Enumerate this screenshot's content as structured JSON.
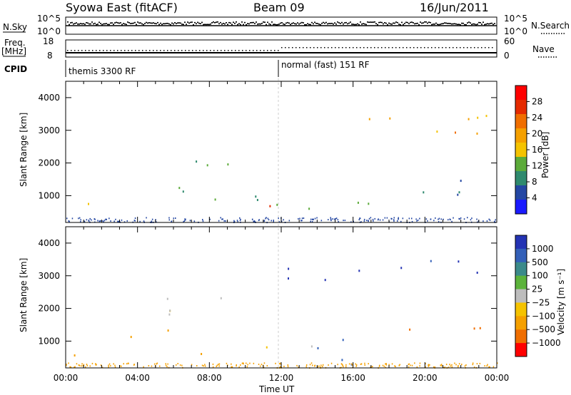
{
  "header": {
    "station": "Syowa East (fitACF)",
    "beam": "Beam 09",
    "date": "16/Jun/2011"
  },
  "strips": {
    "noise_left_label": "N.Sky",
    "noise_right_label": "N.Search",
    "noise_left_ticks": [
      "10^5",
      "10^0"
    ],
    "noise_right_ticks": [
      "10^5",
      "10^0"
    ],
    "freq_label_line1": "Freq.",
    "freq_label_line2": "[MHz]",
    "freq_ticks": [
      "18",
      "8"
    ],
    "nave_label": "Nave",
    "nave_ticks": [
      "60",
      "0"
    ],
    "cpid_label": "CPID",
    "cpid_modes": [
      "themis 3300 RF",
      "normal (fast) 151 RF"
    ]
  },
  "colors": {
    "power_scale": [
      "#1a1aff",
      "#2447a3",
      "#2f8a6e",
      "#5cab3a",
      "#f5c300",
      "#f5a000",
      "#f06e00",
      "#e52b00",
      "#ff0000"
    ],
    "velocity_scale": [
      "#2433b3",
      "#3360b8",
      "#3b8a8a",
      "#5cb33b",
      "#bdbdbd",
      "#f5c300",
      "#f5a000",
      "#f06e00",
      "#ff0000"
    ]
  },
  "chart_data": [
    {
      "type": "heatmap",
      "name": "power-panel",
      "xlabel": "",
      "ylabel": "Slant Range [km]",
      "x_range_hours": [
        0,
        24
      ],
      "ylim": [
        180,
        4500
      ],
      "y_ticks": [
        1000,
        2000,
        3000,
        4000
      ],
      "x_ticks": [
        "00:00",
        "04:00",
        "08:00",
        "12:00",
        "16:00",
        "20:00",
        "00:00"
      ],
      "colorbar_label": "Power [dB]",
      "colorbar_range": [
        0,
        32
      ],
      "colorbar_ticks": [
        "4",
        "8",
        "12",
        "16",
        "20",
        "24",
        "28"
      ],
      "grid": false,
      "regions": [
        {
          "t0": 5.5,
          "t1": 9.5,
          "r0": 1800,
          "r1": 2500,
          "value": 8
        },
        {
          "t0": 3.0,
          "t1": 7.0,
          "r0": 1100,
          "r1": 1600,
          "value": 8
        },
        {
          "t0": 6.5,
          "t1": 11.0,
          "r0": 900,
          "r1": 1500,
          "value": 10
        },
        {
          "t0": 8.5,
          "t1": 11.5,
          "r0": 500,
          "r1": 800,
          "value": 26
        },
        {
          "t0": 11.5,
          "t1": 13.5,
          "r0": 500,
          "r1": 900,
          "value": 14
        },
        {
          "t0": 13.0,
          "t1": 17.0,
          "r0": 400,
          "r1": 1100,
          "value": 10
        },
        {
          "t0": 16.5,
          "t1": 17.4,
          "r0": 250,
          "r1": 500,
          "value": 25
        },
        {
          "t0": 0.3,
          "t1": 1.5,
          "r0": 250,
          "r1": 1000,
          "value": 12
        },
        {
          "t0": 18.5,
          "t1": 24.0,
          "r0": 1000,
          "r1": 1600,
          "value": 6
        },
        {
          "t0": 12.0,
          "t1": 24.0,
          "r0": 2900,
          "r1": 3500,
          "value": 17
        }
      ]
    },
    {
      "type": "heatmap",
      "name": "velocity-panel",
      "xlabel": "Time UT",
      "ylabel": "Slant Range [km]",
      "x_range_hours": [
        0,
        24
      ],
      "ylim": [
        180,
        4500
      ],
      "y_ticks": [
        1000,
        2000,
        3000,
        4000
      ],
      "x_ticks": [
        "00:00",
        "04:00",
        "08:00",
        "12:00",
        "16:00",
        "20:00",
        "00:00"
      ],
      "colorbar_label": "Velocity [m s⁻¹]",
      "colorbar_ticks": [
        "1000",
        "500",
        "100",
        "25",
        "−25",
        "−100",
        "−500",
        "−1000"
      ],
      "grid": false,
      "regions": [
        {
          "t0": 5.0,
          "t1": 10.0,
          "r0": 1500,
          "r1": 2400,
          "value": 4
        },
        {
          "t0": 2.5,
          "t1": 6.5,
          "r0": 1100,
          "r1": 1500,
          "value": 6
        },
        {
          "t0": 7.5,
          "t1": 12.0,
          "r0": 500,
          "r1": 900,
          "value": 5
        },
        {
          "t0": 12.0,
          "t1": 14.5,
          "r0": 500,
          "r1": 1000,
          "value": 3
        },
        {
          "t0": 14.0,
          "t1": 17.5,
          "r0": 300,
          "r1": 1300,
          "value": 1
        },
        {
          "t0": 0.2,
          "t1": 1.6,
          "r0": 250,
          "r1": 900,
          "value": 7
        },
        {
          "t0": 19.0,
          "t1": 24.0,
          "r0": 1000,
          "r1": 1500,
          "value": 7
        },
        {
          "t0": 12.0,
          "t1": 24.0,
          "r0": 2900,
          "r1": 3500,
          "value": 0
        }
      ]
    }
  ]
}
